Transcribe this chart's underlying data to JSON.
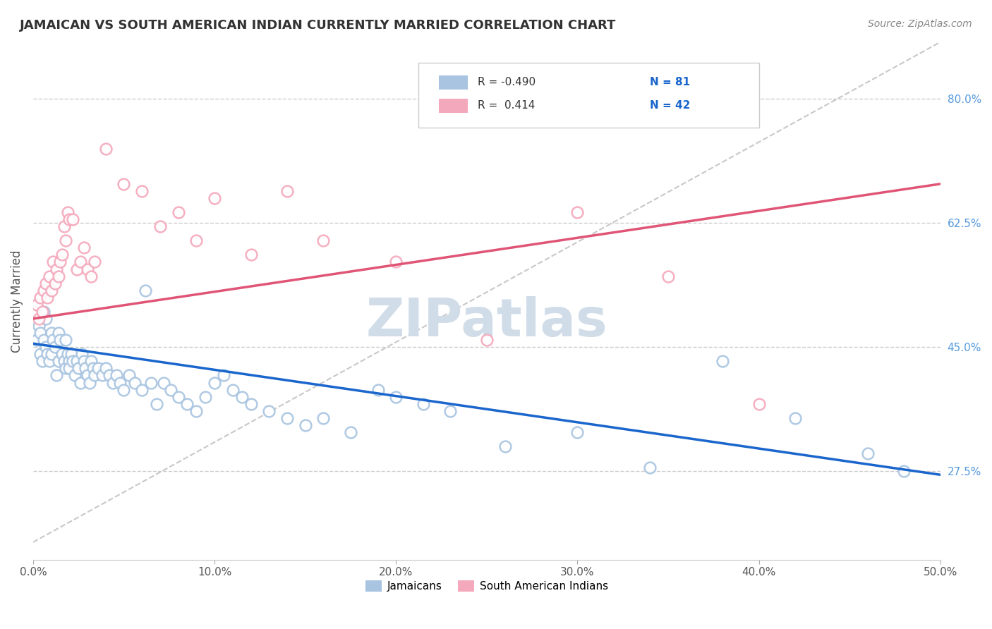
{
  "title": "JAMAICAN VS SOUTH AMERICAN INDIAN CURRENTLY MARRIED CORRELATION CHART",
  "source": "Source: ZipAtlas.com",
  "ylabel": "Currently Married",
  "ytick_labels": [
    "80.0%",
    "62.5%",
    "45.0%",
    "27.5%"
  ],
  "ytick_values": [
    0.8,
    0.625,
    0.45,
    0.275
  ],
  "xmin": 0.0,
  "xmax": 0.5,
  "ymin": 0.15,
  "ymax": 0.88,
  "blue_R": "-0.490",
  "blue_N": "81",
  "pink_R": "0.414",
  "pink_N": "42",
  "blue_color": "#a8c4e0",
  "pink_color": "#f4a8bb",
  "blue_line_color": "#1a66cc",
  "pink_line_color": "#e05575",
  "dashed_line_color": "#c8c8c8",
  "watermark_color": "#d0dce8",
  "legend_label_blue": "Jamaicans",
  "legend_label_pink": "South American Indians",
  "blue_points_x": [
    0.002,
    0.003,
    0.004,
    0.004,
    0.005,
    0.006,
    0.006,
    0.007,
    0.007,
    0.008,
    0.009,
    0.01,
    0.01,
    0.011,
    0.012,
    0.013,
    0.014,
    0.014,
    0.015,
    0.016,
    0.017,
    0.018,
    0.018,
    0.019,
    0.02,
    0.02,
    0.021,
    0.022,
    0.023,
    0.024,
    0.025,
    0.026,
    0.027,
    0.028,
    0.029,
    0.03,
    0.031,
    0.032,
    0.033,
    0.034,
    0.036,
    0.038,
    0.04,
    0.042,
    0.044,
    0.046,
    0.048,
    0.05,
    0.053,
    0.056,
    0.06,
    0.062,
    0.065,
    0.068,
    0.072,
    0.076,
    0.08,
    0.085,
    0.09,
    0.095,
    0.1,
    0.105,
    0.11,
    0.115,
    0.12,
    0.13,
    0.14,
    0.15,
    0.16,
    0.175,
    0.19,
    0.2,
    0.215,
    0.23,
    0.26,
    0.3,
    0.34,
    0.38,
    0.42,
    0.46,
    0.48
  ],
  "blue_points_y": [
    0.46,
    0.48,
    0.44,
    0.47,
    0.43,
    0.5,
    0.46,
    0.45,
    0.49,
    0.44,
    0.43,
    0.44,
    0.47,
    0.46,
    0.45,
    0.41,
    0.43,
    0.47,
    0.46,
    0.44,
    0.43,
    0.42,
    0.46,
    0.44,
    0.43,
    0.42,
    0.44,
    0.43,
    0.41,
    0.43,
    0.42,
    0.4,
    0.44,
    0.43,
    0.42,
    0.41,
    0.4,
    0.43,
    0.42,
    0.41,
    0.42,
    0.41,
    0.42,
    0.41,
    0.4,
    0.41,
    0.4,
    0.39,
    0.41,
    0.4,
    0.39,
    0.53,
    0.4,
    0.37,
    0.4,
    0.39,
    0.38,
    0.37,
    0.36,
    0.38,
    0.4,
    0.41,
    0.39,
    0.38,
    0.37,
    0.36,
    0.35,
    0.34,
    0.35,
    0.33,
    0.39,
    0.38,
    0.37,
    0.36,
    0.31,
    0.33,
    0.28,
    0.43,
    0.35,
    0.3,
    0.275
  ],
  "pink_points_x": [
    0.001,
    0.002,
    0.003,
    0.004,
    0.005,
    0.006,
    0.007,
    0.008,
    0.009,
    0.01,
    0.011,
    0.012,
    0.013,
    0.014,
    0.015,
    0.016,
    0.017,
    0.018,
    0.019,
    0.02,
    0.022,
    0.024,
    0.026,
    0.028,
    0.03,
    0.032,
    0.034,
    0.04,
    0.05,
    0.06,
    0.07,
    0.08,
    0.09,
    0.1,
    0.12,
    0.14,
    0.16,
    0.2,
    0.25,
    0.3,
    0.35,
    0.4
  ],
  "pink_points_y": [
    0.5,
    0.51,
    0.49,
    0.52,
    0.5,
    0.53,
    0.54,
    0.52,
    0.55,
    0.53,
    0.57,
    0.54,
    0.56,
    0.55,
    0.57,
    0.58,
    0.62,
    0.6,
    0.64,
    0.63,
    0.63,
    0.56,
    0.57,
    0.59,
    0.56,
    0.55,
    0.57,
    0.73,
    0.68,
    0.67,
    0.62,
    0.64,
    0.6,
    0.66,
    0.58,
    0.67,
    0.6,
    0.57,
    0.46,
    0.64,
    0.55,
    0.37
  ],
  "blue_trend_x": [
    0.0,
    0.5
  ],
  "blue_trend_y": [
    0.455,
    0.27
  ],
  "pink_trend_x": [
    0.0,
    0.5
  ],
  "pink_trend_y": [
    0.49,
    0.68
  ],
  "dashed_trend_x": [
    0.0,
    0.5
  ],
  "dashed_trend_y": [
    0.175,
    0.88
  ]
}
